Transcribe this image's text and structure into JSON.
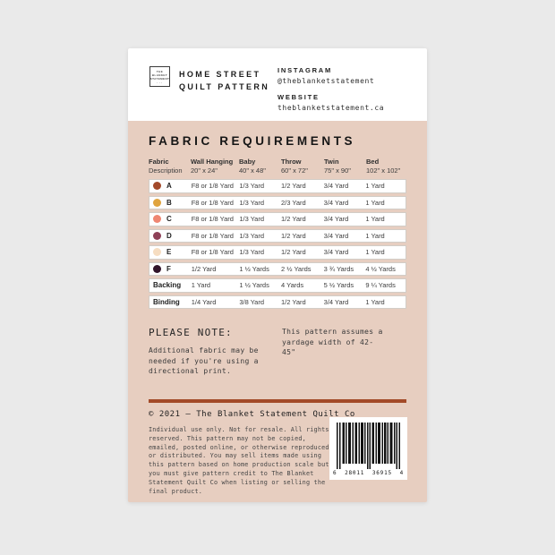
{
  "colors": {
    "page_bg": "#eaeaea",
    "card_bg": "#e7cec0",
    "header_bg": "#ffffff",
    "divider": "#a34a28",
    "row_bg": "#ffffff"
  },
  "header": {
    "logo_lines": [
      "THE",
      "BLANKET",
      "STATEMENT",
      "· · ·"
    ],
    "title_line1": "HOME STREET",
    "title_line2": "QUILT PATTERN",
    "instagram_label": "INSTAGRAM",
    "instagram_handle": "@theblanketstatement",
    "website_label": "WEBSITE",
    "website_url": "theblanketstatement.ca"
  },
  "fabric_requirements": {
    "title": "FABRIC REQUIREMENTS",
    "columns": [
      {
        "label": "Fabric",
        "sub": "Description"
      },
      {
        "label": "Wall Hanging",
        "sub": "20\" x 24\""
      },
      {
        "label": "Baby",
        "sub": "40\" x 48\""
      },
      {
        "label": "Throw",
        "sub": "60\" x 72\""
      },
      {
        "label": "Twin",
        "sub": "75\" x 90\""
      },
      {
        "label": "Bed",
        "sub": "102\" x 102\""
      }
    ],
    "rows": [
      {
        "label": "A",
        "swatch": "#a3492a",
        "values": [
          "F8 or 1/8 Yard",
          "1/3 Yard",
          "1/2 Yard",
          "3/4 Yard",
          "1 Yard"
        ]
      },
      {
        "label": "B",
        "swatch": "#e0a43e",
        "values": [
          "F8 or 1/8 Yard",
          "1/3 Yard",
          "2/3 Yard",
          "3/4 Yard",
          "1 Yard"
        ]
      },
      {
        "label": "C",
        "swatch": "#ef8672",
        "values": [
          "F8 or 1/8 Yard",
          "1/3 Yard",
          "1/2 Yard",
          "3/4 Yard",
          "1 Yard"
        ]
      },
      {
        "label": "D",
        "swatch": "#8e4057",
        "values": [
          "F8 or 1/8 Yard",
          "1/3 Yard",
          "1/2 Yard",
          "3/4 Yard",
          "1 Yard"
        ]
      },
      {
        "label": "E",
        "swatch": "#f6ddc1",
        "values": [
          "F8 or 1/8 Yard",
          "1/3 Yard",
          "1/2 Yard",
          "3/4 Yard",
          "1 Yard"
        ]
      },
      {
        "label": "F",
        "swatch": "#32142a",
        "values": [
          "1/2 Yard",
          "1 ½ Yards",
          "2 ½ Yards",
          "3 ¾ Yards",
          "4 ½ Yards"
        ]
      },
      {
        "label": "Backing",
        "swatch": null,
        "values": [
          "1 Yard",
          "1 ½ Yards",
          "4 Yards",
          "5 ½ Yards",
          "9 ¼ Yards"
        ]
      },
      {
        "label": "Binding",
        "swatch": null,
        "values": [
          "1/4 Yard",
          "3/8 Yard",
          "1/2 Yard",
          "3/4 Yard",
          "1 Yard"
        ]
      }
    ]
  },
  "please_note": {
    "heading": "PLEASE NOTE:",
    "left_text": "Additional fabric may be needed if you're using a directional print.",
    "right_text": "This pattern assumes a yardage width of 42-45\""
  },
  "footer": {
    "copyright": "© 2021 — The Blanket Statement Quilt Co",
    "legal": "Individual use only. Not for resale. All rights reserved. This pattern may not be copied, emailed, posted online, or otherwise reproduced or distributed. You may sell items made using this pattern based on home production scale but you must give pattern credit to The Blanket Statement Quilt Co when listing or selling the final product.",
    "barcode_digits": [
      "6",
      "28011",
      "36915",
      "4"
    ]
  }
}
